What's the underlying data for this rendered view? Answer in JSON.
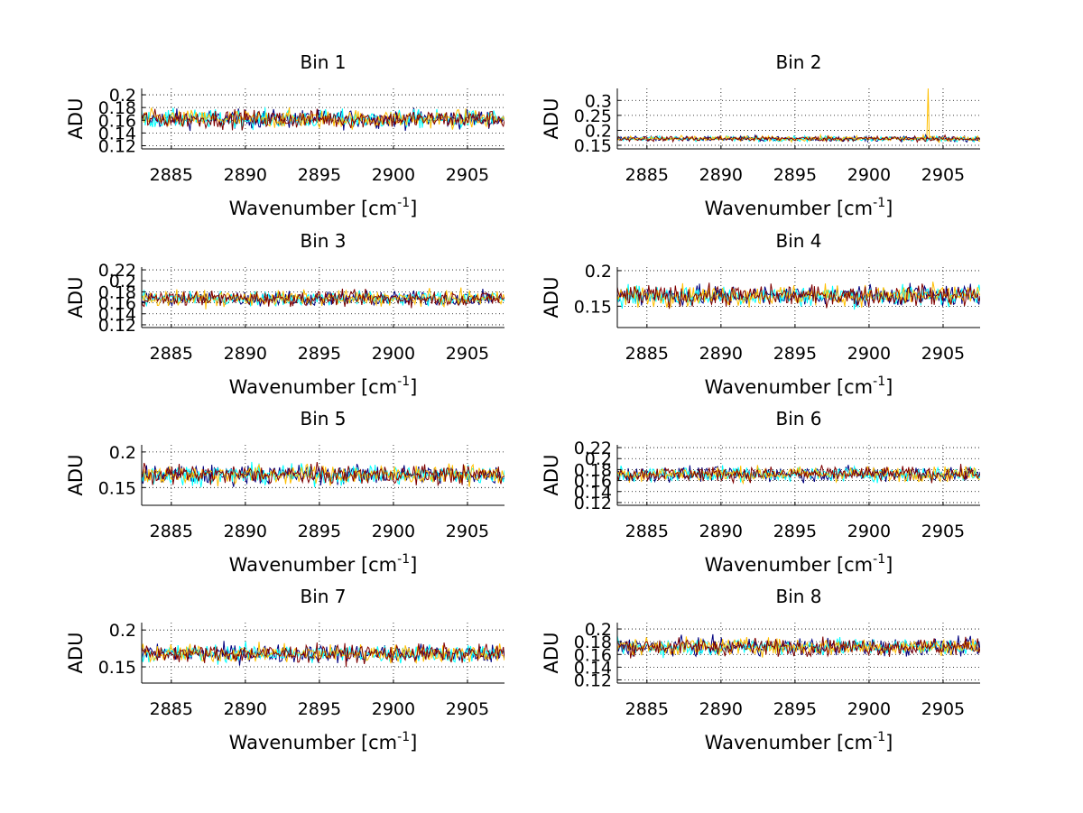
{
  "colors": {
    "background": "#ffffff",
    "axes": "#000000",
    "grid": "#000000",
    "series": [
      "#00007f",
      "#00ffff",
      "#ffbf00",
      "#7f0000"
    ]
  },
  "chart_data": [
    {
      "type": "line",
      "title": "Bin 1",
      "xlabel": "Wavenumber [cm",
      "xlabel_sup": "-1",
      "xlabel_end": "]",
      "ylabel": "ADU",
      "xlim": [
        2883,
        2907.5
      ],
      "ylim": [
        0.115,
        0.21
      ],
      "xticks": [
        2885,
        2890,
        2895,
        2900,
        2905
      ],
      "xtick_labels": [
        "2885",
        "2890",
        "2895",
        "2900",
        "2905"
      ],
      "yticks": [
        0.12,
        0.14,
        0.16,
        0.18,
        0.2
      ],
      "ytick_labels": [
        "0.12",
        "0.14",
        "0.16",
        "0.18",
        "0.2"
      ],
      "series_mean": 0.162,
      "series_spread": 0.013,
      "grid": true
    },
    {
      "type": "line",
      "title": "Bin 2",
      "xlabel": "Wavenumber [cm",
      "xlabel_sup": "-1",
      "xlabel_end": "]",
      "ylabel": "ADU",
      "xlim": [
        2883,
        2907.5
      ],
      "ylim": [
        0.138,
        0.34
      ],
      "xticks": [
        2885,
        2890,
        2895,
        2900,
        2905
      ],
      "xtick_labels": [
        "2885",
        "2890",
        "2895",
        "2900",
        "2905"
      ],
      "yticks": [
        0.15,
        0.2,
        0.25,
        0.3
      ],
      "ytick_labels": [
        "0.15",
        "0.2",
        "0.25",
        "0.3"
      ],
      "series_mean": 0.172,
      "series_spread": 0.008,
      "spike": {
        "x": 2904,
        "y": 0.34
      },
      "grid": true
    },
    {
      "type": "line",
      "title": "Bin 3",
      "xlabel": "Wavenumber [cm",
      "xlabel_sup": "-1",
      "xlabel_end": "]",
      "ylabel": "ADU",
      "xlim": [
        2883,
        2907.5
      ],
      "ylim": [
        0.115,
        0.225
      ],
      "xticks": [
        2885,
        2890,
        2895,
        2900,
        2905
      ],
      "xtick_labels": [
        "2885",
        "2890",
        "2895",
        "2900",
        "2905"
      ],
      "yticks": [
        0.12,
        0.14,
        0.16,
        0.18,
        0.2,
        0.22
      ],
      "ytick_labels": [
        "0.12",
        "0.14",
        "0.16",
        "0.18",
        "0.2",
        "0.22"
      ],
      "series_mean": 0.168,
      "series_spread": 0.012,
      "grid": true
    },
    {
      "type": "line",
      "title": "Bin 4",
      "xlabel": "Wavenumber [cm",
      "xlabel_sup": "-1",
      "xlabel_end": "]",
      "ylabel": "ADU",
      "xlim": [
        2883,
        2907.5
      ],
      "ylim": [
        0.12,
        0.205
      ],
      "xticks": [
        2885,
        2890,
        2895,
        2900,
        2905
      ],
      "xtick_labels": [
        "2885",
        "2890",
        "2895",
        "2900",
        "2905"
      ],
      "yticks": [
        0.15,
        0.2
      ],
      "ytick_labels": [
        "0.15",
        "0.2"
      ],
      "series_mean": 0.165,
      "series_spread": 0.013,
      "grid": true
    },
    {
      "type": "line",
      "title": "Bin 5",
      "xlabel": "Wavenumber [cm",
      "xlabel_sup": "-1",
      "xlabel_end": "]",
      "ylabel": "ADU",
      "xlim": [
        2883,
        2907.5
      ],
      "ylim": [
        0.125,
        0.21
      ],
      "xticks": [
        2885,
        2890,
        2895,
        2900,
        2905
      ],
      "xtick_labels": [
        "2885",
        "2890",
        "2895",
        "2900",
        "2905"
      ],
      "yticks": [
        0.15,
        0.2
      ],
      "ytick_labels": [
        "0.15",
        "0.2"
      ],
      "series_mean": 0.168,
      "series_spread": 0.012,
      "grid": true
    },
    {
      "type": "line",
      "title": "Bin 6",
      "xlabel": "Wavenumber [cm",
      "xlabel_sup": "-1",
      "xlabel_end": "]",
      "ylabel": "ADU",
      "xlim": [
        2883,
        2907.5
      ],
      "ylim": [
        0.115,
        0.225
      ],
      "xticks": [
        2885,
        2890,
        2895,
        2900,
        2905
      ],
      "xtick_labels": [
        "2885",
        "2890",
        "2895",
        "2900",
        "2905"
      ],
      "yticks": [
        0.12,
        0.14,
        0.16,
        0.18,
        0.2,
        0.22
      ],
      "ytick_labels": [
        "0.12",
        "0.14",
        "0.16",
        "0.18",
        "0.2",
        "0.22"
      ],
      "series_mean": 0.172,
      "series_spread": 0.012,
      "grid": true
    },
    {
      "type": "line",
      "title": "Bin 7",
      "xlabel": "Wavenumber [cm",
      "xlabel_sup": "-1",
      "xlabel_end": "]",
      "ylabel": "ADU",
      "xlim": [
        2883,
        2907.5
      ],
      "ylim": [
        0.128,
        0.21
      ],
      "xticks": [
        2885,
        2890,
        2895,
        2900,
        2905
      ],
      "xtick_labels": [
        "2885",
        "2890",
        "2895",
        "2900",
        "2905"
      ],
      "yticks": [
        0.15,
        0.2
      ],
      "ytick_labels": [
        "0.15",
        "0.2"
      ],
      "series_mean": 0.168,
      "series_spread": 0.011,
      "grid": true
    },
    {
      "type": "line",
      "title": "Bin 8",
      "xlabel": "Wavenumber [cm",
      "xlabel_sup": "-1",
      "xlabel_end": "]",
      "ylabel": "ADU",
      "xlim": [
        2883,
        2907.5
      ],
      "ylim": [
        0.115,
        0.21
      ],
      "xticks": [
        2885,
        2890,
        2895,
        2900,
        2905
      ],
      "xtick_labels": [
        "2885",
        "2890",
        "2895",
        "2900",
        "2905"
      ],
      "yticks": [
        0.12,
        0.14,
        0.16,
        0.18,
        0.2
      ],
      "ytick_labels": [
        "0.12",
        "0.14",
        "0.16",
        "0.18",
        "0.2"
      ],
      "series_mean": 0.172,
      "series_spread": 0.012,
      "grid": true
    }
  ]
}
